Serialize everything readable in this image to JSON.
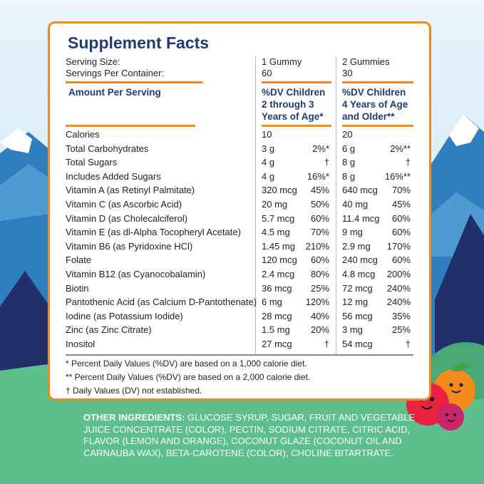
{
  "title": "Supplement Facts",
  "serving_size_label": "Serving Size:",
  "servings_per_container_label": "Servings Per Container:",
  "col1": {
    "serving_size": "1 Gummy",
    "servings": "60",
    "header_line1": "%DV Children",
    "header_line2": "2 through 3",
    "header_line3": "Years of Age*"
  },
  "col2": {
    "serving_size": "2 Gummies",
    "servings": "30",
    "header_line1": "%DV Children",
    "header_line2": "4 Years of Age",
    "header_line3": "and Older**"
  },
  "amount_per_serving": "Amount Per Serving",
  "nutrients": [
    {
      "name": "Calories",
      "a1": "10",
      "d1": "",
      "a2": "20",
      "d2": ""
    },
    {
      "name": "Total Carbohydrates",
      "a1": "3 g",
      "d1": "2%*",
      "a2": "6 g",
      "d2": "2%**"
    },
    {
      "name": "Total Sugars",
      "a1": "4 g",
      "d1": "†",
      "a2": "8 g",
      "d2": "†"
    },
    {
      "name": "Includes Added Sugars",
      "a1": "4 g",
      "d1": "16%*",
      "a2": "8 g",
      "d2": "16%**"
    },
    {
      "name": "Vitamin A (as Retinyl Palmitate)",
      "a1": "320 mcg",
      "d1": "45%",
      "a2": "640 mcg",
      "d2": "70%"
    },
    {
      "name": "Vitamin C (as Ascorbic Acid)",
      "a1": "20 mg",
      "d1": "50%",
      "a2": "40 mg",
      "d2": "45%"
    },
    {
      "name": "Vitamin D (as Cholecalciferol)",
      "a1": "5.7 mcg",
      "d1": "60%",
      "a2": "11.4 mcg",
      "d2": "60%"
    },
    {
      "name": "Vitamin E (as dl-Alpha Tocopheryl Acetate)",
      "a1": "4.5 mg",
      "d1": "70%",
      "a2": "9 mg",
      "d2": "60%"
    },
    {
      "name": "Vitamin B6 (as Pyridoxine HCl)",
      "a1": "1.45 mg",
      "d1": "210%",
      "a2": "2.9 mg",
      "d2": "170%"
    },
    {
      "name": "Folate",
      "a1": "120 mcg",
      "d1": "60%",
      "a2": "240 mcg",
      "d2": "60%"
    },
    {
      "name": "Vitamin B12 (as Cyanocobalamin)",
      "a1": "2.4 mcg",
      "d1": "80%",
      "a2": "4.8 mcg",
      "d2": "200%"
    },
    {
      "name": "Biotin",
      "a1": "36 mcg",
      "d1": "25%",
      "a2": "72 mcg",
      "d2": "240%"
    },
    {
      "name": "Pantothenic Acid (as Calcium D-Pantothenate)",
      "a1": "6 mg",
      "d1": "120%",
      "a2": "12 mg",
      "d2": "240%"
    },
    {
      "name": "Iodine (as Potassium Iodide)",
      "a1": "28 mcg",
      "d1": "40%",
      "a2": "56 mcg",
      "d2": "35%"
    },
    {
      "name": "Zinc (as Zinc Citrate)",
      "a1": "1.5 mg",
      "d1": "20%",
      "a2": "3 mg",
      "d2": "25%"
    },
    {
      "name": "Inositol",
      "a1": "27 mcg",
      "d1": "†",
      "a2": "54 mcg",
      "d2": "†"
    }
  ],
  "footnotes": [
    "* Percent Daily Values (%DV) are based on a 1,000 calorie diet.",
    "** Percent Daily Values (%DV) are based on a 2,000 calorie diet.",
    "† Daily Values (DV) not established."
  ],
  "other_ingredients_label": "OTHER INGREDIENTS:",
  "other_ingredients_text": "GLUCOSE SYRUP, SUGAR, FRUIT AND VEGETABLE JUICE CONCENTRATE (COLOR), PECTIN, SODIUM CITRATE, CITRIC ACID, FLAVOR (LEMON AND ORANGE), COCONUT GLAZE (COCONUT OIL AND CARNAUBA WAX), BETA-CAROTENE (COLOR), CHOLINE BITARTRATE.",
  "colors": {
    "accent": "#f08a1c",
    "title": "#1f3b7a",
    "grass": "#5dbf8c",
    "sky": "#cfe6f3"
  }
}
